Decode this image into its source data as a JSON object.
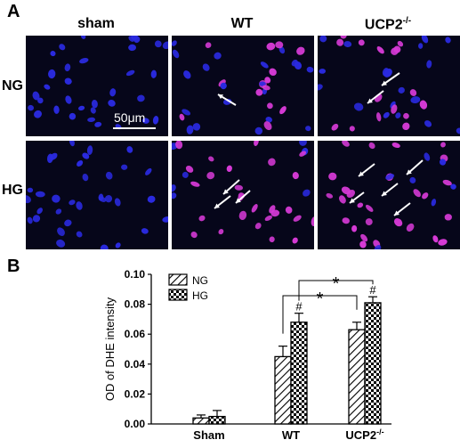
{
  "panel_a": {
    "letter": "A",
    "columns": [
      "sham",
      "WT",
      "UCP2"
    ],
    "column_superscript": "-/-",
    "rows": [
      "NG",
      "HG"
    ],
    "scale_bar": "50μm",
    "colors": {
      "nuclei": "#2a2ae0",
      "dhe": "#d63ad6",
      "background": "#06061a",
      "arrow": "#ffffff"
    }
  },
  "panel_b": {
    "letter": "B"
  },
  "chart_data": {
    "type": "bar",
    "categories": [
      "Sham",
      "WT",
      "UCP2"
    ],
    "category_superscript": {
      "UCP2": "-/-"
    },
    "series": [
      {
        "name": "NG",
        "values": [
          0.004,
          0.045,
          0.063
        ],
        "errors": [
          0.002,
          0.007,
          0.005
        ],
        "pattern": "diagonal-hatch"
      },
      {
        "name": "HG",
        "values": [
          0.005,
          0.068,
          0.081
        ],
        "errors": [
          0.004,
          0.006,
          0.004
        ],
        "pattern": "checkerboard"
      }
    ],
    "ylabel": "OD of DHE intensity",
    "xlabel": "",
    "ylim": [
      0,
      0.1
    ],
    "yticks": [
      "0.00",
      "0.02",
      "0.04",
      "0.06",
      "0.08",
      "0.10"
    ],
    "legend_position": "top-left",
    "annotations": {
      "hash": "#",
      "star": "*"
    },
    "grid": false
  }
}
